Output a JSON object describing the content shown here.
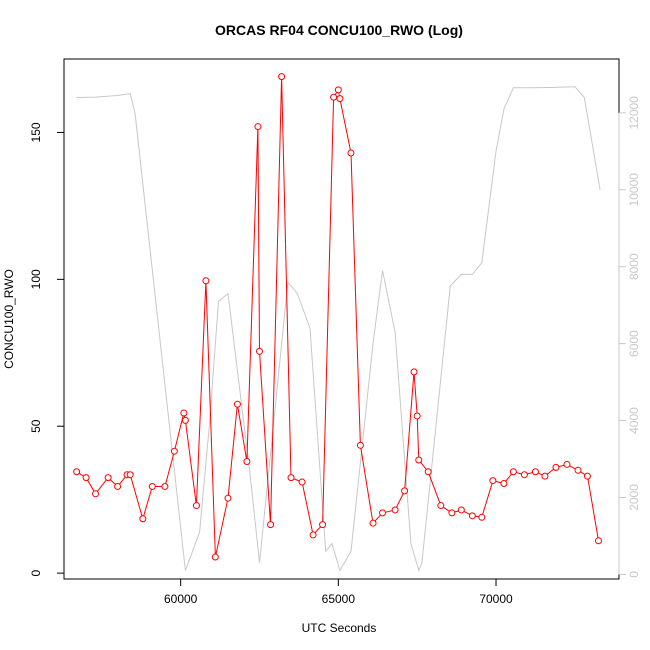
{
  "chart_data": {
    "type": "line",
    "title": "ORCAS RF04 CONCU100_RWO (Log)",
    "xlabel": "UTC Seconds",
    "ylabel": "CONCU100_RWO",
    "y2label": "",
    "xlim": [
      56300,
      73900
    ],
    "ylim": [
      -2,
      175
    ],
    "y2lim": [
      -120,
      13400
    ],
    "x_ticks": [
      60000,
      65000,
      70000
    ],
    "y_ticks": [
      0,
      50,
      100,
      150
    ],
    "y2_ticks": [
      0,
      2000,
      4000,
      6000,
      8000,
      10000,
      12000
    ],
    "grid": false,
    "colors": {
      "primary": "#ff0000",
      "secondary": "#c8c8c8"
    },
    "series": [
      {
        "axis": "left",
        "style": "line+points",
        "color": "#ff0000",
        "x": [
          56700,
          57000,
          57300,
          57700,
          58000,
          58300,
          58400,
          58800,
          59100,
          59500,
          59800,
          60100,
          60150,
          60500,
          60800,
          61100,
          61500,
          61800,
          62100,
          62450,
          62500,
          62850,
          63200,
          63500,
          63850,
          64200,
          64500,
          64850,
          65000,
          65050,
          65400,
          65700,
          66100,
          66400,
          66800,
          67100,
          67400,
          67500,
          67550,
          67850,
          68250,
          68600,
          68900,
          69250,
          69550,
          69900,
          70250,
          70550,
          70900,
          71250,
          71550,
          71900,
          72250,
          72600,
          72900,
          73250
        ],
        "y": [
          34.5,
          32.5,
          27,
          32.5,
          29.5,
          33.5,
          33.5,
          18.5,
          29.5,
          29.5,
          41.5,
          54.5,
          52,
          23,
          99.5,
          5.5,
          25.5,
          57.5,
          38,
          152,
          75.5,
          16.5,
          169,
          32.5,
          31,
          13,
          16.5,
          162,
          164.5,
          161.5,
          143,
          43.5,
          17,
          20.5,
          21.5,
          28,
          68.5,
          53.5,
          38.5,
          34.5,
          23,
          20.5,
          21.5,
          19.5,
          19,
          31.5,
          30.5,
          34.5,
          33.5,
          34.5,
          33,
          36,
          37,
          35,
          33,
          11
        ]
      },
      {
        "axis": "right",
        "style": "line",
        "color": "#c8c8c8",
        "x": [
          56700,
          57300,
          58000,
          58400,
          58550,
          60150,
          60600,
          60900,
          61200,
          61500,
          62200,
          62500,
          63400,
          63700,
          64100,
          64600,
          64800,
          65050,
          65400,
          66100,
          66400,
          66800,
          67300,
          67550,
          67650,
          68550,
          68900,
          69250,
          69550,
          70000,
          70250,
          70550,
          71100,
          71700,
          72500,
          72800,
          73300
        ],
        "y": [
          12400,
          12410,
          12450,
          12500,
          12000,
          100,
          1100,
          3800,
          7100,
          7300,
          2600,
          300,
          7600,
          7300,
          6400,
          600,
          800,
          100,
          600,
          6000,
          7900,
          6300,
          800,
          100,
          300,
          7500,
          7800,
          7800,
          8100,
          11000,
          12100,
          12650,
          12650,
          12660,
          12680,
          12400,
          10000
        ]
      }
    ]
  }
}
